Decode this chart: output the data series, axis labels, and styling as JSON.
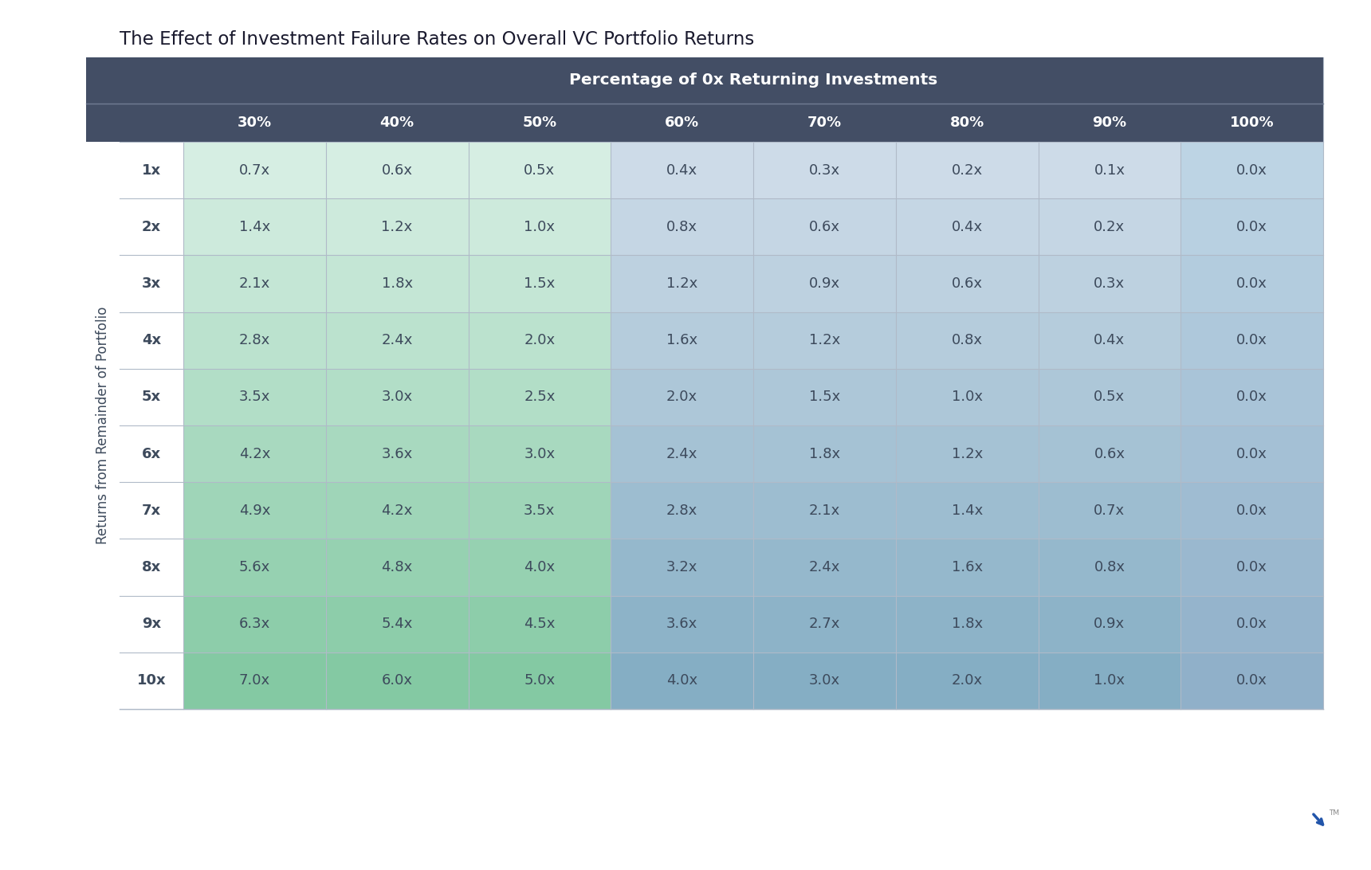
{
  "title": "The Effect of Investment Failure Rates on Overall VC Portfolio Returns",
  "col_header_label": "Percentage of 0x Returning Investments",
  "col_headers": [
    "30%",
    "40%",
    "50%",
    "60%",
    "70%",
    "80%",
    "90%",
    "100%"
  ],
  "row_header_label": "Returns from Remainder of Portfolio",
  "row_headers": [
    "1x",
    "2x",
    "3x",
    "4x",
    "5x",
    "6x",
    "7x",
    "8x",
    "9x",
    "10x"
  ],
  "data": [
    [
      0.7,
      0.6,
      0.5,
      0.4,
      0.3,
      0.2,
      0.1,
      0.0
    ],
    [
      1.4,
      1.2,
      1.0,
      0.8,
      0.6,
      0.4,
      0.2,
      0.0
    ],
    [
      2.1,
      1.8,
      1.5,
      1.2,
      0.9,
      0.6,
      0.3,
      0.0
    ],
    [
      2.8,
      2.4,
      2.0,
      1.6,
      1.2,
      0.8,
      0.4,
      0.0
    ],
    [
      3.5,
      3.0,
      2.5,
      2.0,
      1.5,
      1.0,
      0.5,
      0.0
    ],
    [
      4.2,
      3.6,
      3.0,
      2.4,
      1.8,
      1.2,
      0.6,
      0.0
    ],
    [
      4.9,
      4.2,
      3.5,
      2.8,
      2.1,
      1.4,
      0.7,
      0.0
    ],
    [
      5.6,
      4.8,
      4.0,
      3.2,
      2.4,
      1.6,
      0.8,
      0.0
    ],
    [
      6.3,
      5.4,
      4.5,
      3.6,
      2.7,
      1.8,
      0.9,
      0.0
    ],
    [
      7.0,
      6.0,
      5.0,
      4.0,
      3.0,
      2.0,
      1.0,
      0.0
    ]
  ],
  "header_bg_color": "#434e65",
  "header_text_color": "#ffffff",
  "cell_text_color": "#3d4a5c",
  "title_color": "#1a1a2e",
  "divider_color": "#b0bac8",
  "background_color": "#ffffff",
  "green_colors_by_row": [
    "#d6eee3",
    "#cdeadc",
    "#c4e6d5",
    "#bbe2ce",
    "#b2dec7",
    "#a8d9bf",
    "#9fd5b8",
    "#96d1b1",
    "#8dcdaa",
    "#84c9a3"
  ],
  "blue_colors_by_row": [
    "#cddbe8",
    "#c5d6e4",
    "#bdd1e0",
    "#b5ccdc",
    "#adc7d8",
    "#a5c2d4",
    "#9dbdd0",
    "#95b8cc",
    "#8db3c8",
    "#85aec4"
  ],
  "last_col_colors_by_row": [
    "#bdd4e4",
    "#b8d0e1",
    "#b3ccde",
    "#aec8db",
    "#a9c4d8",
    "#a4c0d5",
    "#9fbcd2",
    "#9ab8cf",
    "#95b4cc",
    "#90b0c9"
  ]
}
